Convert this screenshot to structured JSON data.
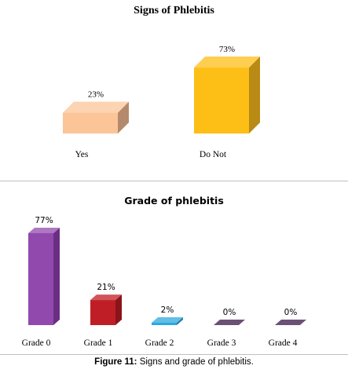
{
  "charts": [
    {
      "title": "Signs of Phlebitis",
      "chart_data": {
        "type": "bar",
        "title": "Signs of Phlebitis",
        "categories": [
          "Yes",
          "Do Not"
        ],
        "values": [
          23,
          73
        ],
        "value_labels": [
          "23%",
          "73%"
        ],
        "unit": "%",
        "ylim": [
          0,
          100
        ],
        "grid": false,
        "legend": "none",
        "colors": [
          "#FBC598",
          "#FDBE16"
        ],
        "side_colors": [
          "#B48A6C",
          "#B98A14"
        ]
      }
    },
    {
      "title": "Grade of phlebitis",
      "chart_data": {
        "type": "bar",
        "title": "Grade of phlebitis",
        "categories": [
          "Grade 0",
          "Grade 1",
          "Grade 2",
          "Grade 3",
          "Grade 4"
        ],
        "values": [
          77,
          21,
          2,
          0,
          0
        ],
        "value_labels": [
          "77%",
          "21%",
          "2%",
          "0%",
          "0%"
        ],
        "unit": "%",
        "ylim": [
          0,
          100
        ],
        "grid": false,
        "legend": "none",
        "colors": [
          "#9149AE",
          "#C01E26",
          "#2DA8DF",
          "#3A1748",
          "#3A1748"
        ],
        "side_colors": [
          "#6A2E82",
          "#8A1419",
          "#1F7BA6",
          "#24102E",
          "#24102E"
        ]
      }
    }
  ],
  "caption": {
    "label": "Figure 11:",
    "text": " Signs and grade of phlebitis."
  }
}
